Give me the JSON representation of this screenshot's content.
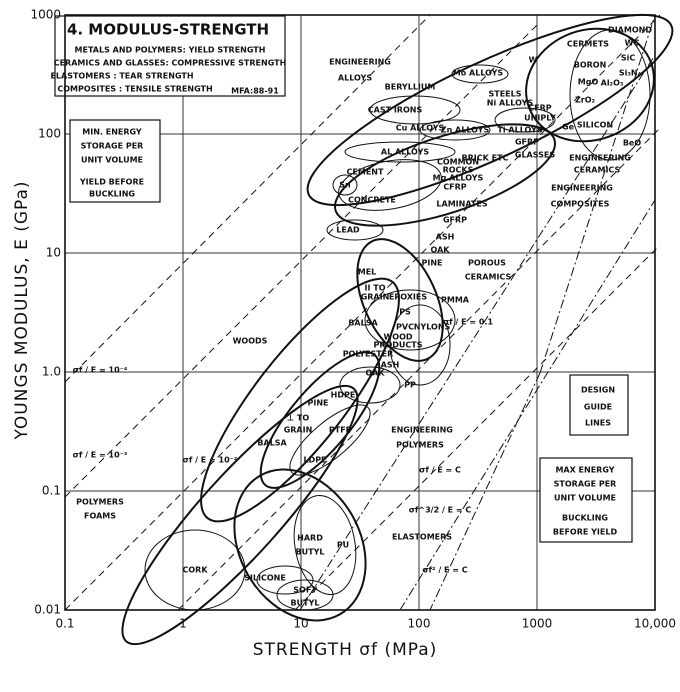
{
  "chart_data": {
    "type": "ashby",
    "title": "4. MODULUS-STRENGTH",
    "x_label": "STRENGTH σf (MPa)",
    "y_label": "YOUNGS MODULUS, E (GPa)",
    "log_x": true,
    "log_y": true,
    "grid": true,
    "xlim": [
      0.1,
      10000
    ],
    "ylim": [
      0.01,
      1000
    ],
    "xticks": [
      0.1,
      1,
      10,
      100,
      1000,
      {
        "value": 10000,
        "label": "10,000"
      }
    ],
    "yticks": [
      0.01,
      0.1,
      {
        "value": 1,
        "label": "1.0"
      },
      10,
      100,
      1000
    ],
    "annotations": [
      "METALS AND POLYMERS: YIELD STRENGTH",
      "CERAMICS AND GLASSES: COMPRESSIVE STRENGTH",
      "ELASTOMERS : TEAR STRENGTH",
      "COMPOSITES : TENSILE STRENGTH",
      "MFA:88-91",
      "MIN. ENERGY",
      "STORAGE PER",
      "UNIT VOLUME",
      "YIELD BEFORE",
      "BUCKLING",
      "ENGINEERING",
      "ALLOYS",
      "CERMETS",
      "DIAMOND",
      "WC",
      "SiC",
      "BORON",
      "Si₃N₄",
      "MgO",
      "Al₂O₃",
      "ZrO₂",
      "BeO",
      "SILICON",
      "Ge",
      "W",
      "Mo ALLOYS",
      "BERYLLIUM",
      "STEELS",
      "Ni ALLOYS",
      "CFRP",
      "UNIPLY",
      "CAST IRONS",
      "Cu ALLOYS",
      "Zn ALLOYS",
      "Ti ALLOYS",
      "GFRP",
      "AL ALLOYS",
      "COMMON",
      "ROCKS",
      "Mg ALLOYS",
      "BRICK ETC",
      "GLASSES",
      "ENGINEERING",
      "CERAMICS",
      "CEMENT",
      "CONCRETE",
      "Sn",
      "CFRP",
      "LAMINATES",
      "GFRP",
      "ENGINEERING",
      "COMPOSITES",
      "LEAD",
      "ASH",
      "OAK",
      "PINE",
      "POROUS",
      "CERAMICS",
      "MEL",
      "II TO",
      "GRAIN",
      "EPOXIES",
      "PMMA",
      "PS",
      "BALSA",
      "PVC",
      "NYLONS",
      "WOOD",
      "PRODUCTS",
      "POLYESTER",
      "WOODS",
      "ASH",
      "OAK",
      "PP",
      "PINE",
      "HDPE",
      "⊥ TO",
      "GRAIN",
      "PTFE",
      "BALSA",
      "LDPE",
      "ENGINEERING",
      "POLYMERS",
      "DESIGN",
      "GUIDE",
      "LINES",
      "σf / E = 10⁻⁴",
      "σf / E = 10⁻³",
      "σf / E = 10⁻²",
      "σf / E = 0.1",
      "σf / E = C",
      "σf^3/2 / E = C",
      "σf² / E = C",
      "MAX ENERGY",
      "STORAGE PER",
      "UNIT VOLUME",
      "BUCKLING",
      "BEFORE YIELD",
      "POLYMERS",
      "FOAMS",
      "ELASTOMERS",
      "CORK",
      "HARD",
      "BUTYL",
      "PU",
      "SILICONE",
      "SOFT",
      "BUTYL"
    ]
  }
}
